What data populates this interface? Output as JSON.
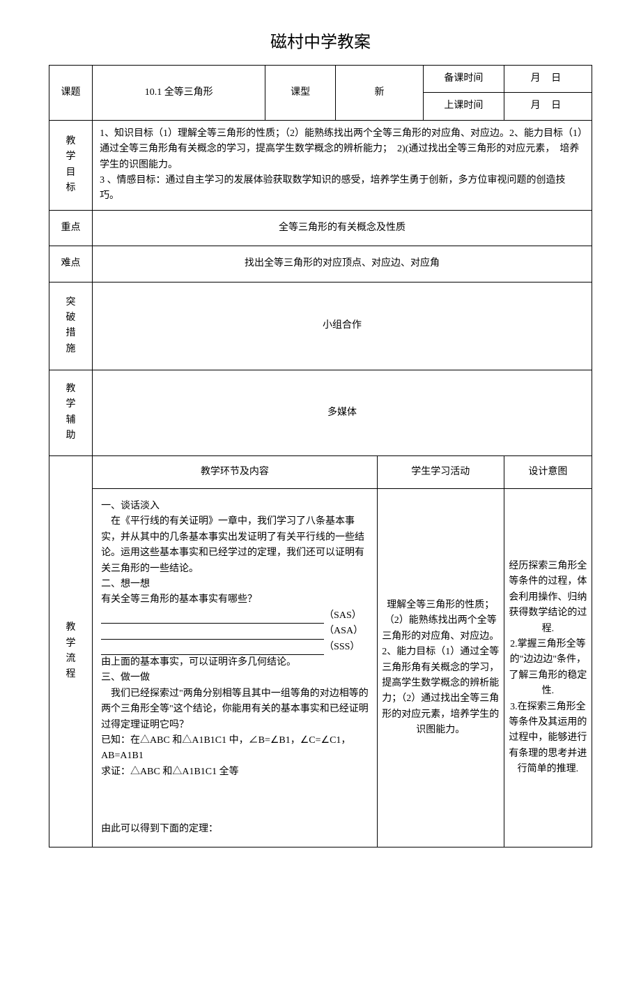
{
  "title": "磁村中学教案",
  "header": {
    "topic_label": "课题",
    "topic_value": "10.1 全等三角形",
    "type_label": "课型",
    "type_value": "新",
    "prep_time_label": "备课时间",
    "class_time_label": "上课时间",
    "date_value": "月  日"
  },
  "rows": {
    "goals_label": "教学目标",
    "goals_value": "1、知识目标（1）理解全等三角形的性质；（2）能熟练找出两个全等三角形的对应角、对应边。2、能力目标（1）通过全等三角形角有关概念的学习，提高学生数学概念的辨析能力；  2)(通过找出全等三角形的对应元素，  培养学生的识图能力。\n3 、情感目标：通过自主学习的发展体验获取数学知识的感受，培养学生勇于创新，多方位审视问题的创造技巧。",
    "key_label": "重点",
    "key_value": "全等三角形的有关概念及性质",
    "diff_label": "难点",
    "diff_value": "找出全等三角形的对应顶点、对应边、对应角",
    "break_label": "突破措施",
    "break_value": "小组合作",
    "aid_label": "教学辅助",
    "aid_value": "多媒体"
  },
  "section_headers": {
    "content": "教学环节及内容",
    "activity": "学生学习活动",
    "design": "设计意图"
  },
  "flow_label": [
    "教",
    "学",
    "流",
    "程"
  ],
  "content_body": {
    "p1": "一、谈话淡入",
    "p2": "　在《平行线的有关证明》一章中，我们学习了八条基本事实，并从其中的几条基本事实出发证明了有关平行线的一些结论。运用这些基本事实和已经学过的定理，我们还可以证明有关三角形的一些结论。",
    "p3": "二、想一想",
    "p4": "有关全等三角形的基本事实有哪些？",
    "sas": "（SAS）",
    "asa": "（ASA）",
    "sss": "（SSS）",
    "p5": "由上面的基本事实，可以证明许多几何结论。",
    "p6": "三、做一做",
    "p7": "　我们已经探索过\"两角分别相等且其中一组等角的对边相等的两个三角形全等\"这个结论，你能用有关的基本事实和已经证明过得定理证明它吗？",
    "p8": "已知：在△ABC 和△A1B1C1 中，∠B=∠B1，∠C=∠C1，AB=A1B1",
    "p9": "求证：△ABC 和△A1B1C1 全等",
    "p10": "由此可以得到下面的定理："
  },
  "activity_body": "理解全等三角形的性质；（2）能熟练找出两个全等三角形的对应角、对应边。  2、能力目标（1）通过全等三角形角有关概念的学习，提高学生数学概念的辨析能力；（2）通过找出全等三角形的对应元素，培养学生的识图能力。",
  "design_body": "经历探索三角形全等条件的过程，体会利用操作、归纳获得数学结论的过程.\n2.掌握三角形全等的\"边边边\"条件，了解三角形的稳定性.\n3.在探索三角形全等条件及其运用的过程中，能够进行有条理的思考并进行简单的推理."
}
